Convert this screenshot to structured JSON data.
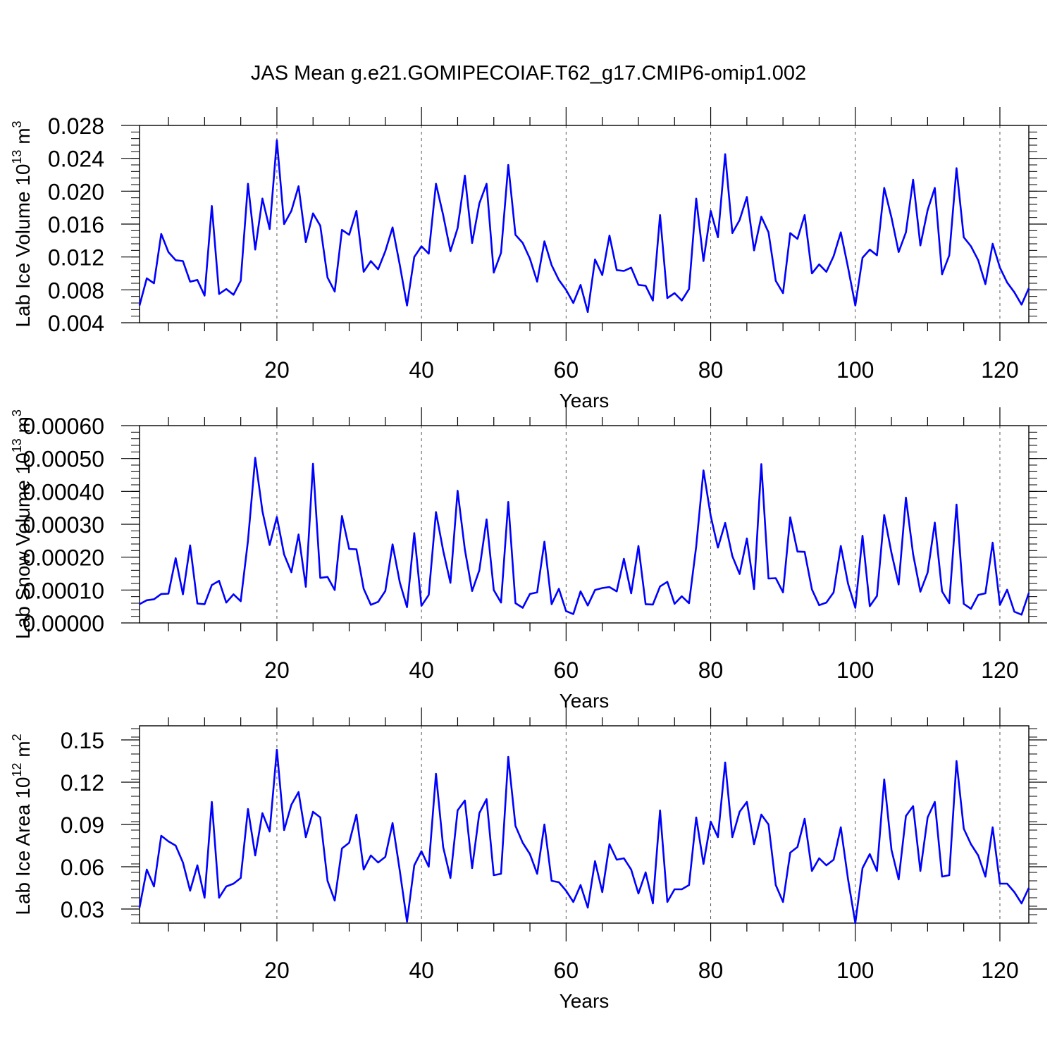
{
  "chart_data": {
    "title": "JAS Mean g.e21.GOMIPECOIAF.T62_g17.CMIP6-omip1.002",
    "type": "line",
    "line_color": "#0000ff",
    "panels": [
      {
        "id": "ice-volume",
        "ylabel": "Lab Ice Volume 10",
        "ylabel_exp": "13",
        "ylabel_unit": " m",
        "ylabel_unit_exp": "3",
        "xlabel": "Years",
        "xlim": [
          1,
          124
        ],
        "ylim": [
          0.004,
          0.028
        ],
        "yticks": [
          0.004,
          0.008,
          0.012,
          0.016,
          0.02,
          0.024,
          0.028
        ],
        "ytick_labels": [
          "0.004",
          "0.008",
          "0.012",
          "0.016",
          "0.020",
          "0.024",
          "0.028"
        ],
        "xticks": [
          20,
          40,
          60,
          80,
          100,
          120
        ],
        "xtick_labels": [
          "20",
          "40",
          "60",
          "80",
          "100",
          "120"
        ],
        "x_start": 1,
        "values": [
          0.0061,
          0.0094,
          0.0088,
          0.0148,
          0.0126,
          0.0116,
          0.0115,
          0.009,
          0.0092,
          0.0073,
          0.0182,
          0.0075,
          0.0081,
          0.0074,
          0.0091,
          0.0209,
          0.0129,
          0.0191,
          0.0154,
          0.0262,
          0.016,
          0.0176,
          0.0206,
          0.0138,
          0.0173,
          0.0158,
          0.0095,
          0.0078,
          0.0153,
          0.0147,
          0.0176,
          0.0102,
          0.0115,
          0.0105,
          0.0127,
          0.0156,
          0.011,
          0.0061,
          0.012,
          0.0133,
          0.0124,
          0.0209,
          0.0171,
          0.0127,
          0.0155,
          0.0219,
          0.0137,
          0.0185,
          0.0209,
          0.0101,
          0.0125,
          0.0232,
          0.0147,
          0.0137,
          0.0118,
          0.009,
          0.0139,
          0.011,
          0.0092,
          0.008,
          0.0064,
          0.0086,
          0.0053,
          0.0117,
          0.0098,
          0.0146,
          0.0104,
          0.0103,
          0.0107,
          0.0086,
          0.0085,
          0.0067,
          0.0171,
          0.007,
          0.0076,
          0.0067,
          0.0081,
          0.0191,
          0.0115,
          0.0176,
          0.0144,
          0.0245,
          0.0149,
          0.0165,
          0.0193,
          0.0128,
          0.0169,
          0.015,
          0.0091,
          0.0076,
          0.0149,
          0.0142,
          0.0171,
          0.01,
          0.0111,
          0.0102,
          0.0121,
          0.015,
          0.0107,
          0.0061,
          0.0119,
          0.0129,
          0.0122,
          0.0204,
          0.0168,
          0.0126,
          0.015,
          0.0214,
          0.0134,
          0.0177,
          0.0204,
          0.0099,
          0.0122,
          0.0228,
          0.0144,
          0.0133,
          0.0116,
          0.0087,
          0.0136,
          0.0107,
          0.0089,
          0.0077,
          0.0062,
          0.0082
        ]
      },
      {
        "id": "snow-volume",
        "ylabel": "Lab Snow Volume 10",
        "ylabel_exp": "13",
        "ylabel_unit": " m",
        "ylabel_unit_exp": "3",
        "xlabel": "Years",
        "xlim": [
          1,
          124
        ],
        "ylim": [
          0,
          0.0006
        ],
        "yticks": [
          0,
          0.0001,
          0.0002,
          0.0003,
          0.0004,
          0.0005,
          0.0006
        ],
        "ytick_labels": [
          "0.00000",
          "0.00010",
          "0.00020",
          "0.00030",
          "0.00040",
          "0.00050",
          "0.00060"
        ],
        "xticks": [
          20,
          40,
          60,
          80,
          100,
          120
        ],
        "xtick_labels": [
          "20",
          "40",
          "60",
          "80",
          "100",
          "120"
        ],
        "x_start": 1,
        "values": [
          5.7e-05,
          6.9e-05,
          7.2e-05,
          8.8e-05,
          8.9e-05,
          0.000197,
          8.7e-05,
          0.000236,
          5.9e-05,
          5.7e-05,
          0.000115,
          0.000128,
          6.2e-05,
          8.7e-05,
          6.6e-05,
          0.00025,
          0.000502,
          0.00034,
          0.000237,
          0.000322,
          0.000208,
          0.000154,
          0.000269,
          0.00011,
          0.000484,
          0.000137,
          0.00014,
          0.0001,
          0.000325,
          0.000225,
          0.000224,
          0.000104,
          5.5e-05,
          6.4e-05,
          9.7e-05,
          0.000239,
          0.000123,
          4.8e-05,
          0.000273,
          5.2e-05,
          8.5e-05,
          0.000337,
          0.00022,
          0.000122,
          0.000402,
          0.000223,
          9.7e-05,
          0.00016,
          0.000315,
          0.0001,
          6.2e-05,
          0.000368,
          6e-05,
          4.6e-05,
          8.8e-05,
          9.3e-05,
          0.000247,
          5.7e-05,
          0.000104,
          3.6e-05,
          2.7e-05,
          9.6e-05,
          5.3e-05,
          0.0001,
          0.000106,
          0.000109,
          9.6e-05,
          0.000195,
          9e-05,
          0.000234,
          5.7e-05,
          5.6e-05,
          0.000111,
          0.000125,
          5.8e-05,
          8.1e-05,
          6e-05,
          0.000233,
          0.000464,
          0.000325,
          0.000229,
          0.000304,
          0.000203,
          0.000149,
          0.000257,
          0.000103,
          0.000483,
          0.000135,
          0.000136,
          9.3e-05,
          0.000321,
          0.000217,
          0.000216,
          0.000102,
          5.4e-05,
          6.2e-05,
          9.3e-05,
          0.000234,
          0.000119,
          4.6e-05,
          0.000265,
          5.1e-05,
          8.2e-05,
          0.000328,
          0.000213,
          0.000117,
          0.000381,
          0.000209,
          9.5e-05,
          0.000153,
          0.000305,
          9.6e-05,
          6e-05,
          0.00036,
          5.8e-05,
          4.3e-05,
          8.5e-05,
          9e-05,
          0.000244,
          5.5e-05,
          0.000101,
          3.4e-05,
          2.5e-05,
          9.1e-05
        ]
      },
      {
        "id": "ice-area",
        "ylabel": "Lab Ice Area 10",
        "ylabel_exp": "12",
        "ylabel_unit": " m",
        "ylabel_unit_exp": "2",
        "xlabel": "Years",
        "xlim": [
          1,
          124
        ],
        "ylim": [
          0.02,
          0.16
        ],
        "yticks": [
          0.03,
          0.06,
          0.09,
          0.12,
          0.15
        ],
        "ytick_labels": [
          "0.03",
          "0.06",
          "0.09",
          "0.12",
          "0.15"
        ],
        "xticks": [
          20,
          40,
          60,
          80,
          100,
          120
        ],
        "xtick_labels": [
          "20",
          "40",
          "60",
          "80",
          "100",
          "120"
        ],
        "x_start": 1,
        "values": [
          0.031,
          0.058,
          0.046,
          0.082,
          0.078,
          0.075,
          0.063,
          0.043,
          0.061,
          0.038,
          0.106,
          0.038,
          0.046,
          0.048,
          0.052,
          0.101,
          0.068,
          0.098,
          0.085,
          0.143,
          0.086,
          0.104,
          0.113,
          0.081,
          0.099,
          0.095,
          0.05,
          0.036,
          0.073,
          0.077,
          0.097,
          0.058,
          0.068,
          0.063,
          0.067,
          0.091,
          0.057,
          0.021,
          0.061,
          0.071,
          0.06,
          0.126,
          0.074,
          0.052,
          0.1,
          0.107,
          0.059,
          0.098,
          0.108,
          0.054,
          0.055,
          0.138,
          0.089,
          0.077,
          0.069,
          0.055,
          0.09,
          0.05,
          0.049,
          0.043,
          0.035,
          0.047,
          0.031,
          0.064,
          0.042,
          0.076,
          0.065,
          0.066,
          0.058,
          0.041,
          0.056,
          0.034,
          0.1,
          0.035,
          0.044,
          0.044,
          0.047,
          0.095,
          0.062,
          0.092,
          0.081,
          0.134,
          0.081,
          0.099,
          0.106,
          0.076,
          0.097,
          0.09,
          0.047,
          0.035,
          0.07,
          0.074,
          0.094,
          0.057,
          0.066,
          0.061,
          0.065,
          0.088,
          0.051,
          0.02,
          0.059,
          0.069,
          0.057,
          0.122,
          0.072,
          0.051,
          0.096,
          0.103,
          0.057,
          0.095,
          0.106,
          0.053,
          0.054,
          0.135,
          0.087,
          0.076,
          0.068,
          0.053,
          0.088,
          0.048,
          0.048,
          0.042,
          0.034,
          0.045
        ]
      }
    ]
  }
}
